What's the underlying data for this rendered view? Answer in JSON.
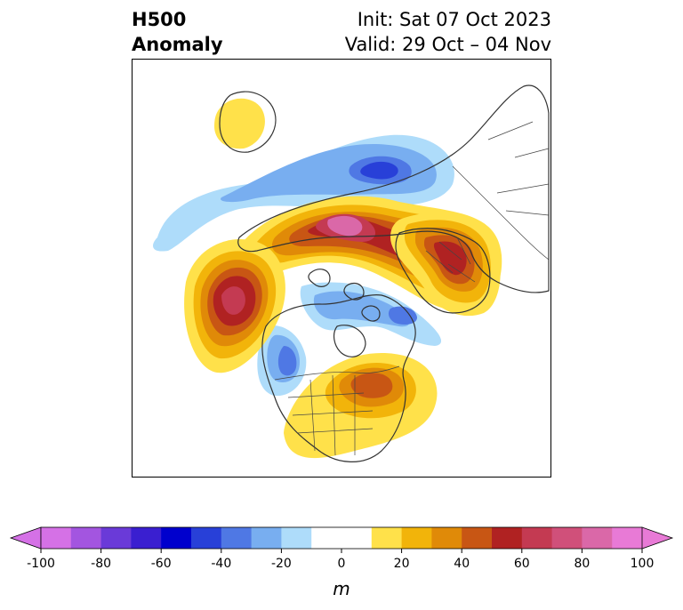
{
  "title": {
    "line1_left": "H500",
    "line2_left": "Anomaly",
    "line1_right": "Init: Sat 07 Oct 2023",
    "line2_right": "Valid: 29 Oct – 04 Nov"
  },
  "colorbar": {
    "unit": "m",
    "ticks": [
      "-100",
      "-80",
      "-60",
      "-40",
      "-20",
      "0",
      "20",
      "40",
      "60",
      "80",
      "100"
    ],
    "colors": [
      "#d571e6",
      "#a355e0",
      "#6a3ad8",
      "#3a1fd0",
      "#0000cd",
      "#2840d8",
      "#4f78e4",
      "#78aef0",
      "#aedcfa",
      "#ffffff",
      "#ffffff",
      "#ffe14a",
      "#f2b40a",
      "#e08a08",
      "#c85614",
      "#b02222",
      "#c43a52",
      "#d0507a",
      "#da68a8",
      "#e87ad6"
    ]
  },
  "map": {
    "projection": "north polar stereographic",
    "colors": {
      "coastline": "#333333",
      "borders": "#444444"
    }
  }
}
